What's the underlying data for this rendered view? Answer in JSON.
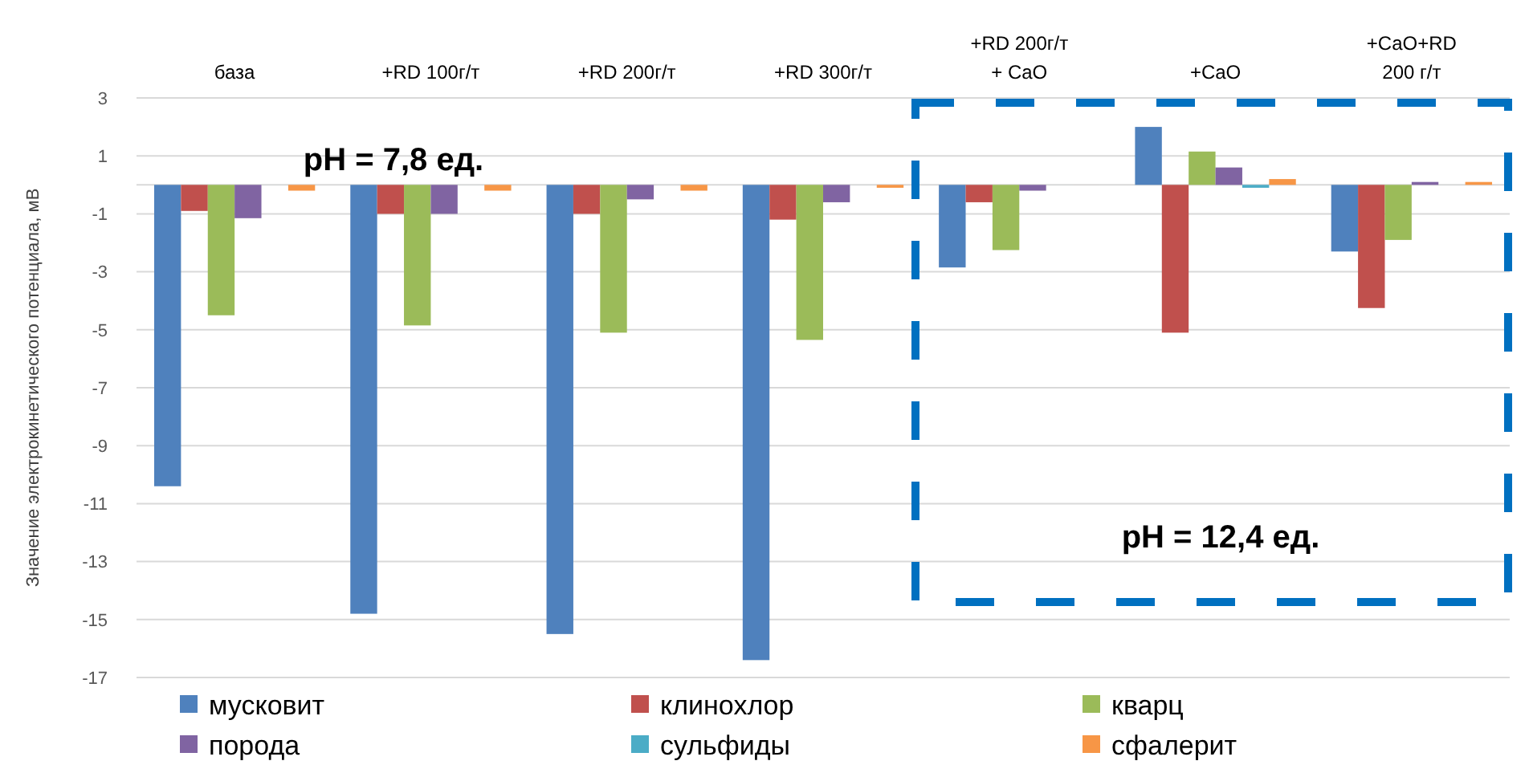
{
  "chart_data": {
    "type": "bar",
    "ylabel": "Значение электрокинетического потенциала, мВ",
    "categories": [
      "база",
      "+RD 100г/т",
      "+RD 200г/т",
      "+RD 300г/т",
      "+RD 200г/т\n+ CaO",
      "+CaO",
      "+CaO+RD\n200 г/т"
    ],
    "series": [
      {
        "name": "мусковит",
        "color": "#4f81bd",
        "values": [
          -10.4,
          -14.8,
          -15.5,
          -16.4,
          -2.85,
          2.0,
          -2.3
        ]
      },
      {
        "name": "клинохлор",
        "color": "#c0504d",
        "values": [
          -0.9,
          -1.0,
          -1.0,
          -1.2,
          -0.6,
          -5.1,
          -4.25
        ]
      },
      {
        "name": "кварц",
        "color": "#9bbb59",
        "values": [
          -4.5,
          -4.85,
          -5.1,
          -5.35,
          -2.25,
          1.15,
          -1.9
        ]
      },
      {
        "name": "порода",
        "color": "#8064a2",
        "values": [
          -1.15,
          -1.0,
          -0.5,
          -0.6,
          -0.2,
          0.6,
          0.1
        ]
      },
      {
        "name": "сульфиды",
        "color": "#4bacc6",
        "values": [
          0,
          0,
          0,
          0,
          0,
          -0.1,
          0
        ]
      },
      {
        "name": "сфалерит",
        "color": "#f79646",
        "values": [
          -0.2,
          -0.2,
          -0.2,
          -0.1,
          0,
          0.2,
          0.1
        ]
      }
    ],
    "ylim": [
      -17,
      3
    ],
    "yticks": [
      3,
      1,
      -1,
      -3,
      -5,
      -7,
      -9,
      -11,
      -13,
      -15,
      -17
    ],
    "grid": "y",
    "legend": "bottom",
    "annotations": [
      "pH = 7,8 ед.",
      "pH = 12,4 ед."
    ]
  }
}
